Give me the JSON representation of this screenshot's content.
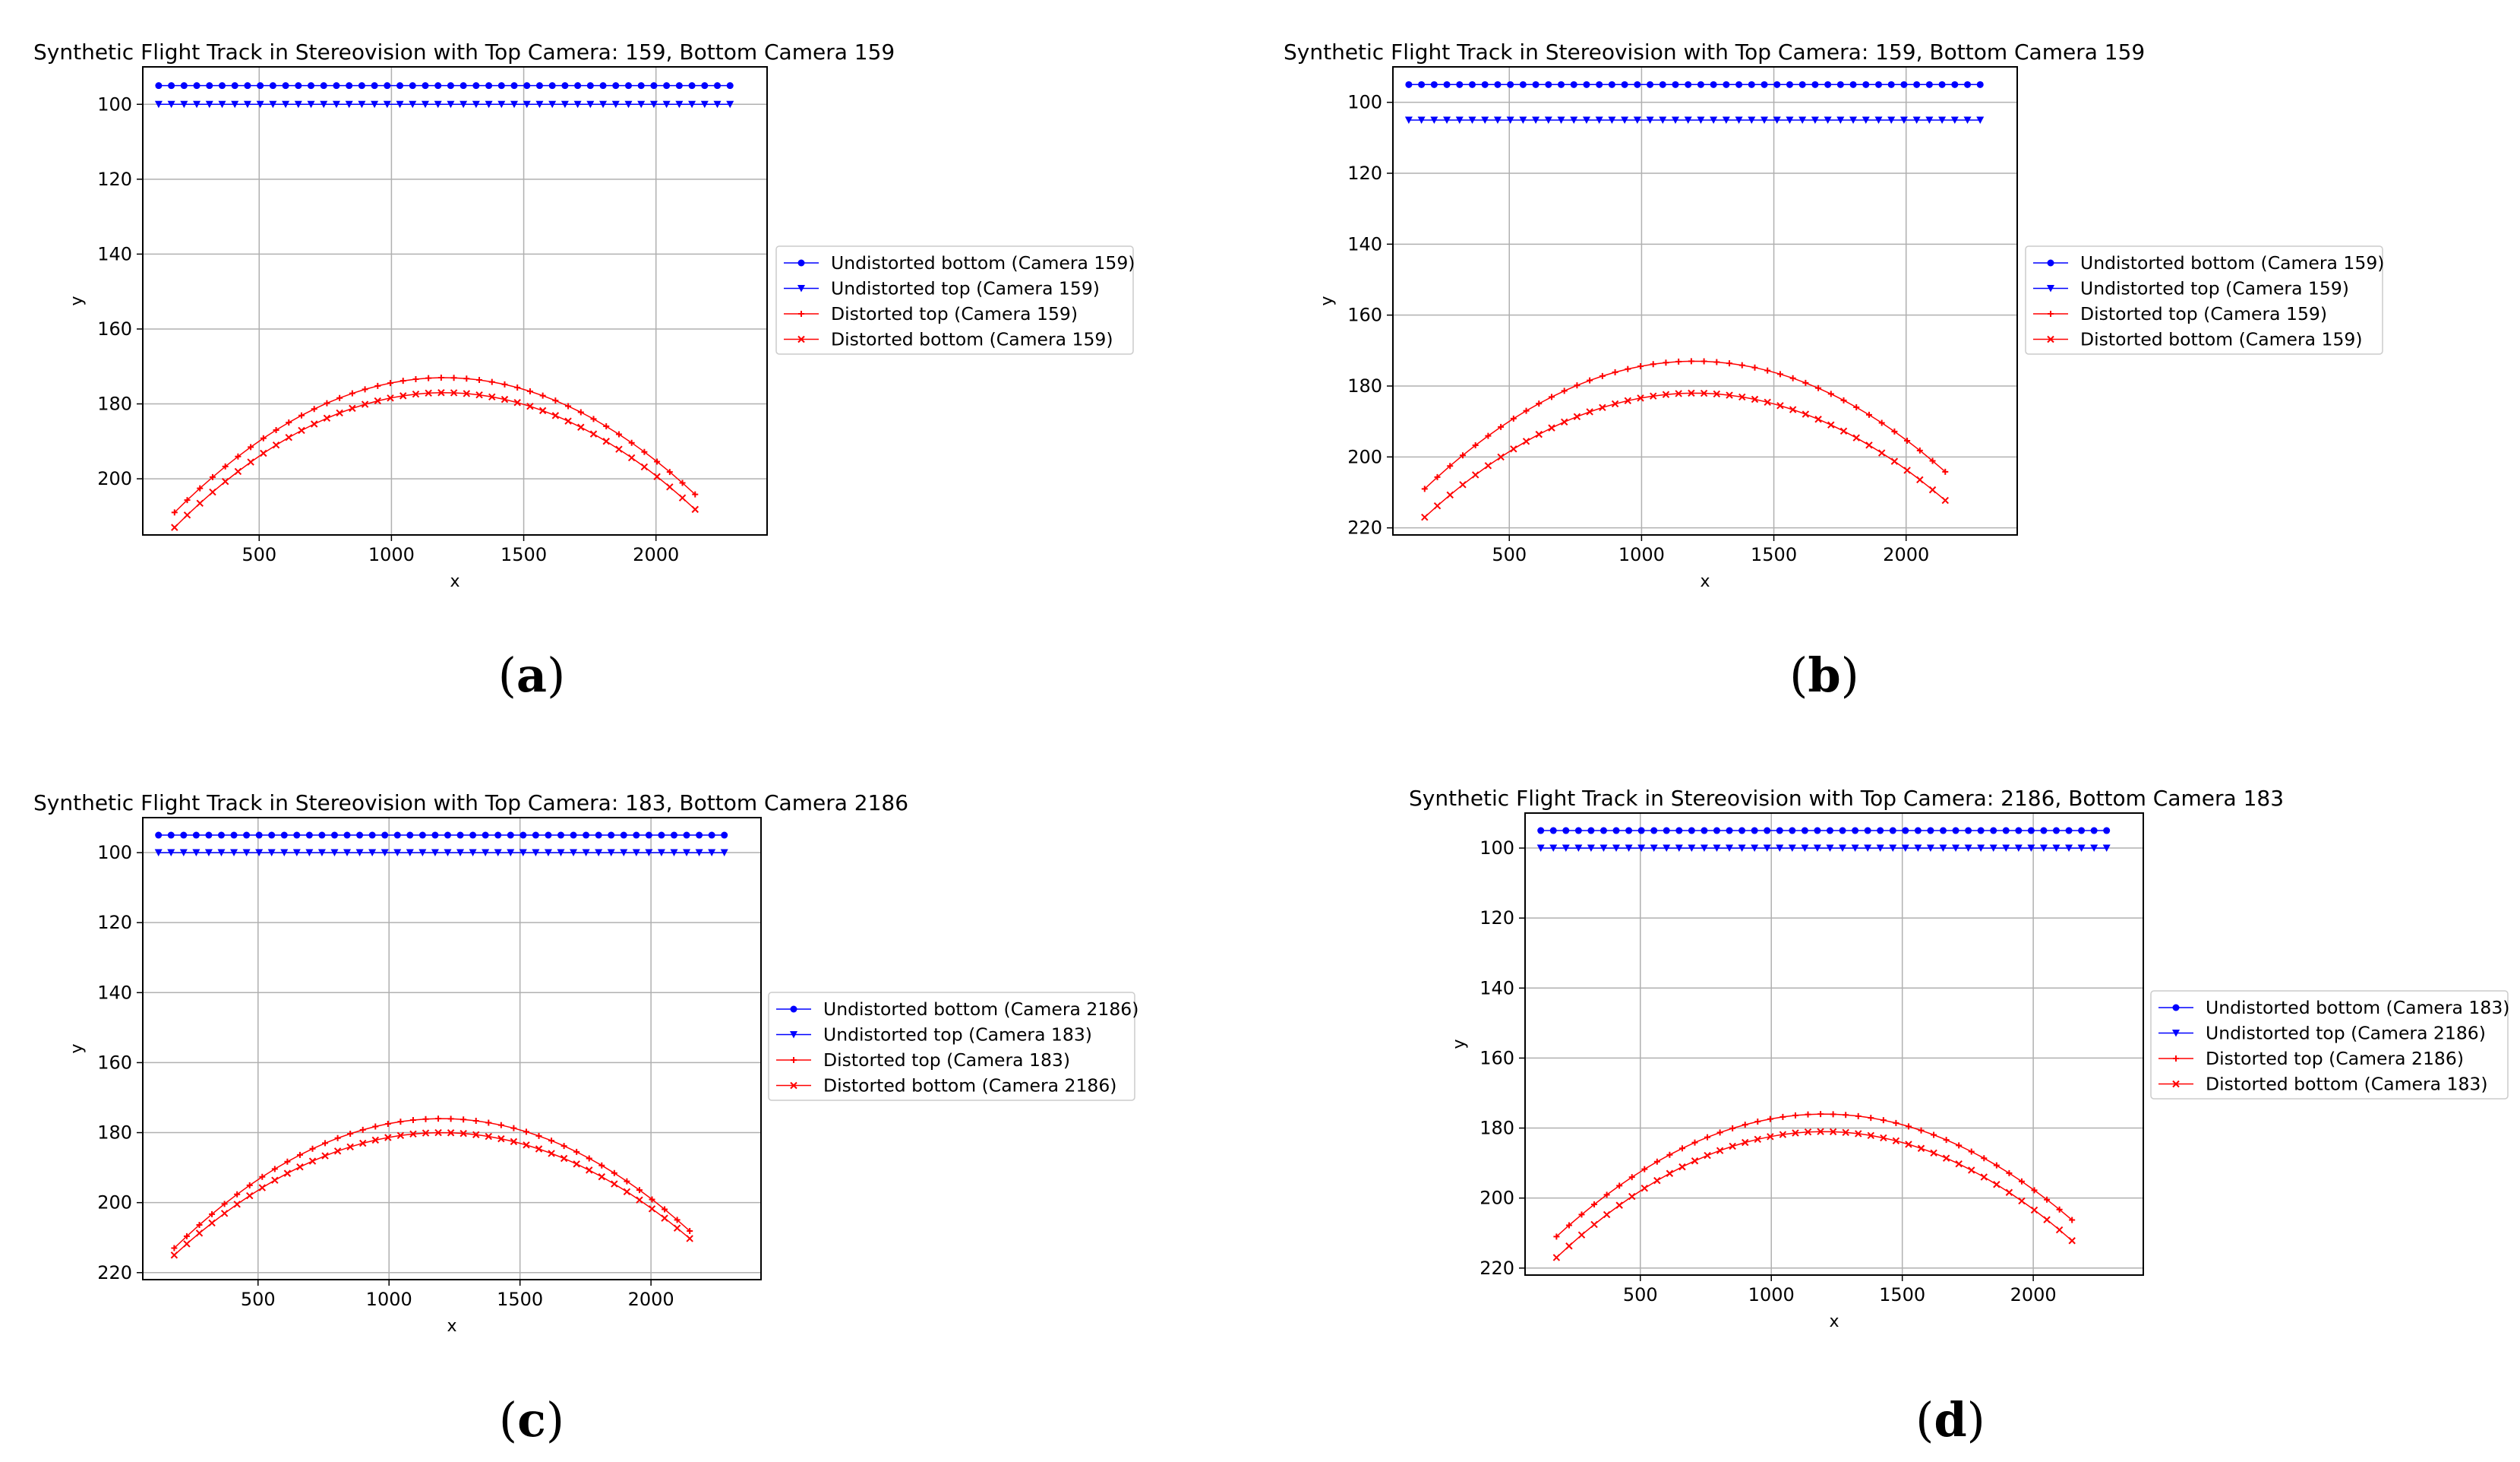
{
  "chart_data": [
    {
      "panel": "a",
      "caption_letter": "a",
      "type": "line",
      "title": "Synthetic Flight Track in Stereovision with Top Camera: 159, Bottom Camera 159",
      "xlabel": "x",
      "ylabel": "y",
      "xlim": [
        60,
        2420
      ],
      "ylim": [
        215,
        90
      ],
      "xticks": [
        500,
        1000,
        1500,
        2000
      ],
      "yticks": [
        100,
        120,
        140,
        160,
        180,
        200
      ],
      "grid": true,
      "legend_position": "outside-right",
      "series": [
        {
          "name": "Undistorted bottom (Camera 159)",
          "color": "#0000ff",
          "marker": "circle",
          "x_start": 120,
          "x_end": 2280,
          "x_step": 48,
          "y_const": 95
        },
        {
          "name": "Undistorted top (Camera 159)",
          "color": "#0000ff",
          "marker": "triangle-down",
          "x_start": 120,
          "x_end": 2280,
          "x_step": 48,
          "y_const": 100
        },
        {
          "name": "Distorted top (Camera 159)",
          "color": "#ff0000",
          "marker": "plus",
          "x_start": 180,
          "x_end": 2190,
          "x_step": 48,
          "y_ends": [
            209,
            207
          ],
          "y_peak": 173,
          "x_peak": 1200
        },
        {
          "name": "Distorted bottom (Camera 159)",
          "color": "#ff0000",
          "marker": "x",
          "x_start": 180,
          "x_end": 2190,
          "x_step": 48,
          "y_ends": [
            213,
            211
          ],
          "y_peak": 177,
          "x_peak": 1200
        }
      ]
    },
    {
      "panel": "b",
      "caption_letter": "b",
      "type": "line",
      "title": "Synthetic Flight Track in Stereovision with Top Camera: 159, Bottom Camera 159",
      "xlabel": "x",
      "ylabel": "y",
      "xlim": [
        60,
        2420
      ],
      "ylim": [
        222,
        90
      ],
      "xticks": [
        500,
        1000,
        1500,
        2000
      ],
      "yticks": [
        100,
        120,
        140,
        160,
        180,
        200,
        220
      ],
      "grid": true,
      "legend_position": "outside-right",
      "series": [
        {
          "name": "Undistorted bottom (Camera 159)",
          "color": "#0000ff",
          "marker": "circle",
          "x_start": 120,
          "x_end": 2280,
          "x_step": 48,
          "y_const": 95
        },
        {
          "name": "Undistorted top (Camera 159)",
          "color": "#0000ff",
          "marker": "triangle-down",
          "x_start": 120,
          "x_end": 2280,
          "x_step": 48,
          "y_const": 105
        },
        {
          "name": "Distorted top (Camera 159)",
          "color": "#ff0000",
          "marker": "plus",
          "x_start": 180,
          "x_end": 2190,
          "x_step": 48,
          "y_ends": [
            209,
            207
          ],
          "y_peak": 173,
          "x_peak": 1200
        },
        {
          "name": "Distorted bottom (Camera 159)",
          "color": "#ff0000",
          "marker": "x",
          "x_start": 180,
          "x_end": 2190,
          "x_step": 48,
          "y_ends": [
            217,
            215
          ],
          "y_peak": 182,
          "x_peak": 1200
        }
      ]
    },
    {
      "panel": "c",
      "caption_letter": "c",
      "type": "line",
      "title": "Synthetic Flight Track in Stereovision with Top Camera: 183, Bottom Camera 2186",
      "xlabel": "x",
      "ylabel": "y",
      "xlim": [
        60,
        2420
      ],
      "ylim": [
        222,
        90
      ],
      "xticks": [
        500,
        1000,
        1500,
        2000
      ],
      "yticks": [
        100,
        120,
        140,
        160,
        180,
        200,
        220
      ],
      "grid": true,
      "legend_position": "outside-right",
      "series": [
        {
          "name": "Undistorted bottom (Camera 2186)",
          "color": "#0000ff",
          "marker": "circle",
          "x_start": 120,
          "x_end": 2280,
          "x_step": 48,
          "y_const": 95
        },
        {
          "name": "Undistorted top (Camera 183)",
          "color": "#0000ff",
          "marker": "triangle-down",
          "x_start": 120,
          "x_end": 2280,
          "x_step": 48,
          "y_const": 100
        },
        {
          "name": "Distorted top (Camera 183)",
          "color": "#ff0000",
          "marker": "plus",
          "x_start": 180,
          "x_end": 2190,
          "x_step": 48,
          "y_ends": [
            213,
            211
          ],
          "y_peak": 176,
          "x_peak": 1200
        },
        {
          "name": "Distorted bottom (Camera 2186)",
          "color": "#ff0000",
          "marker": "x",
          "x_start": 180,
          "x_end": 2190,
          "x_step": 48,
          "y_ends": [
            215,
            213
          ],
          "y_peak": 180,
          "x_peak": 1200
        }
      ]
    },
    {
      "panel": "d",
      "caption_letter": "d",
      "type": "line",
      "title": "Synthetic Flight Track in Stereovision with Top Camera: 2186, Bottom Camera 183",
      "xlabel": "x",
      "ylabel": "y",
      "xlim": [
        60,
        2420
      ],
      "ylim": [
        222,
        90
      ],
      "xticks": [
        500,
        1000,
        1500,
        2000
      ],
      "yticks": [
        100,
        120,
        140,
        160,
        180,
        200,
        220
      ],
      "grid": true,
      "legend_position": "outside-right",
      "series": [
        {
          "name": "Undistorted bottom (Camera 183)",
          "color": "#0000ff",
          "marker": "circle",
          "x_start": 120,
          "x_end": 2280,
          "x_step": 48,
          "y_const": 95
        },
        {
          "name": "Undistorted top (Camera 2186)",
          "color": "#0000ff",
          "marker": "triangle-down",
          "x_start": 120,
          "x_end": 2280,
          "x_step": 48,
          "y_const": 100
        },
        {
          "name": "Distorted top (Camera 2186)",
          "color": "#ff0000",
          "marker": "plus",
          "x_start": 180,
          "x_end": 2190,
          "x_step": 48,
          "y_ends": [
            211,
            209
          ],
          "y_peak": 176,
          "x_peak": 1200
        },
        {
          "name": "Distorted bottom (Camera 183)",
          "color": "#ff0000",
          "marker": "x",
          "x_start": 180,
          "x_end": 2190,
          "x_step": 48,
          "y_ends": [
            217,
            215
          ],
          "y_peak": 181,
          "x_peak": 1200
        }
      ]
    }
  ]
}
